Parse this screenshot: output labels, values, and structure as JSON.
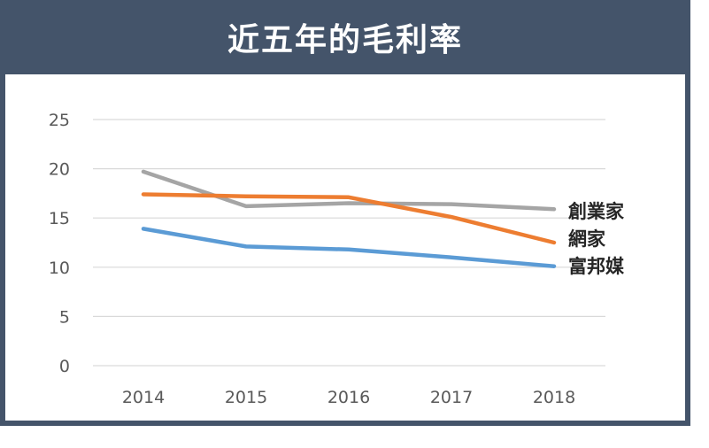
{
  "title": "近五年的毛利率",
  "colors": {
    "header_bg": "#44546a",
    "grid": "#d9d9d9"
  },
  "chart_data": {
    "type": "line",
    "title": "近五年的毛利率",
    "xlabel": "",
    "ylabel": "",
    "x": [
      "2014",
      "2015",
      "2016",
      "2017",
      "2018"
    ],
    "ylim": [
      0,
      25
    ],
    "yticks": [
      "0",
      "5",
      "10",
      "15",
      "20",
      "25"
    ],
    "grid": true,
    "legend": "inline labels at line ends (right)",
    "series": [
      {
        "name": "創業家",
        "color": "#a5a5a5",
        "values": [
          19.7,
          16.2,
          16.5,
          16.4,
          15.9
        ]
      },
      {
        "name": "網家",
        "color": "#ed7d31",
        "values": [
          17.4,
          17.2,
          17.1,
          15.1,
          12.5
        ]
      },
      {
        "name": "富邦媒",
        "color": "#5b9bd5",
        "values": [
          13.9,
          12.1,
          11.8,
          11.0,
          10.1
        ]
      }
    ]
  }
}
